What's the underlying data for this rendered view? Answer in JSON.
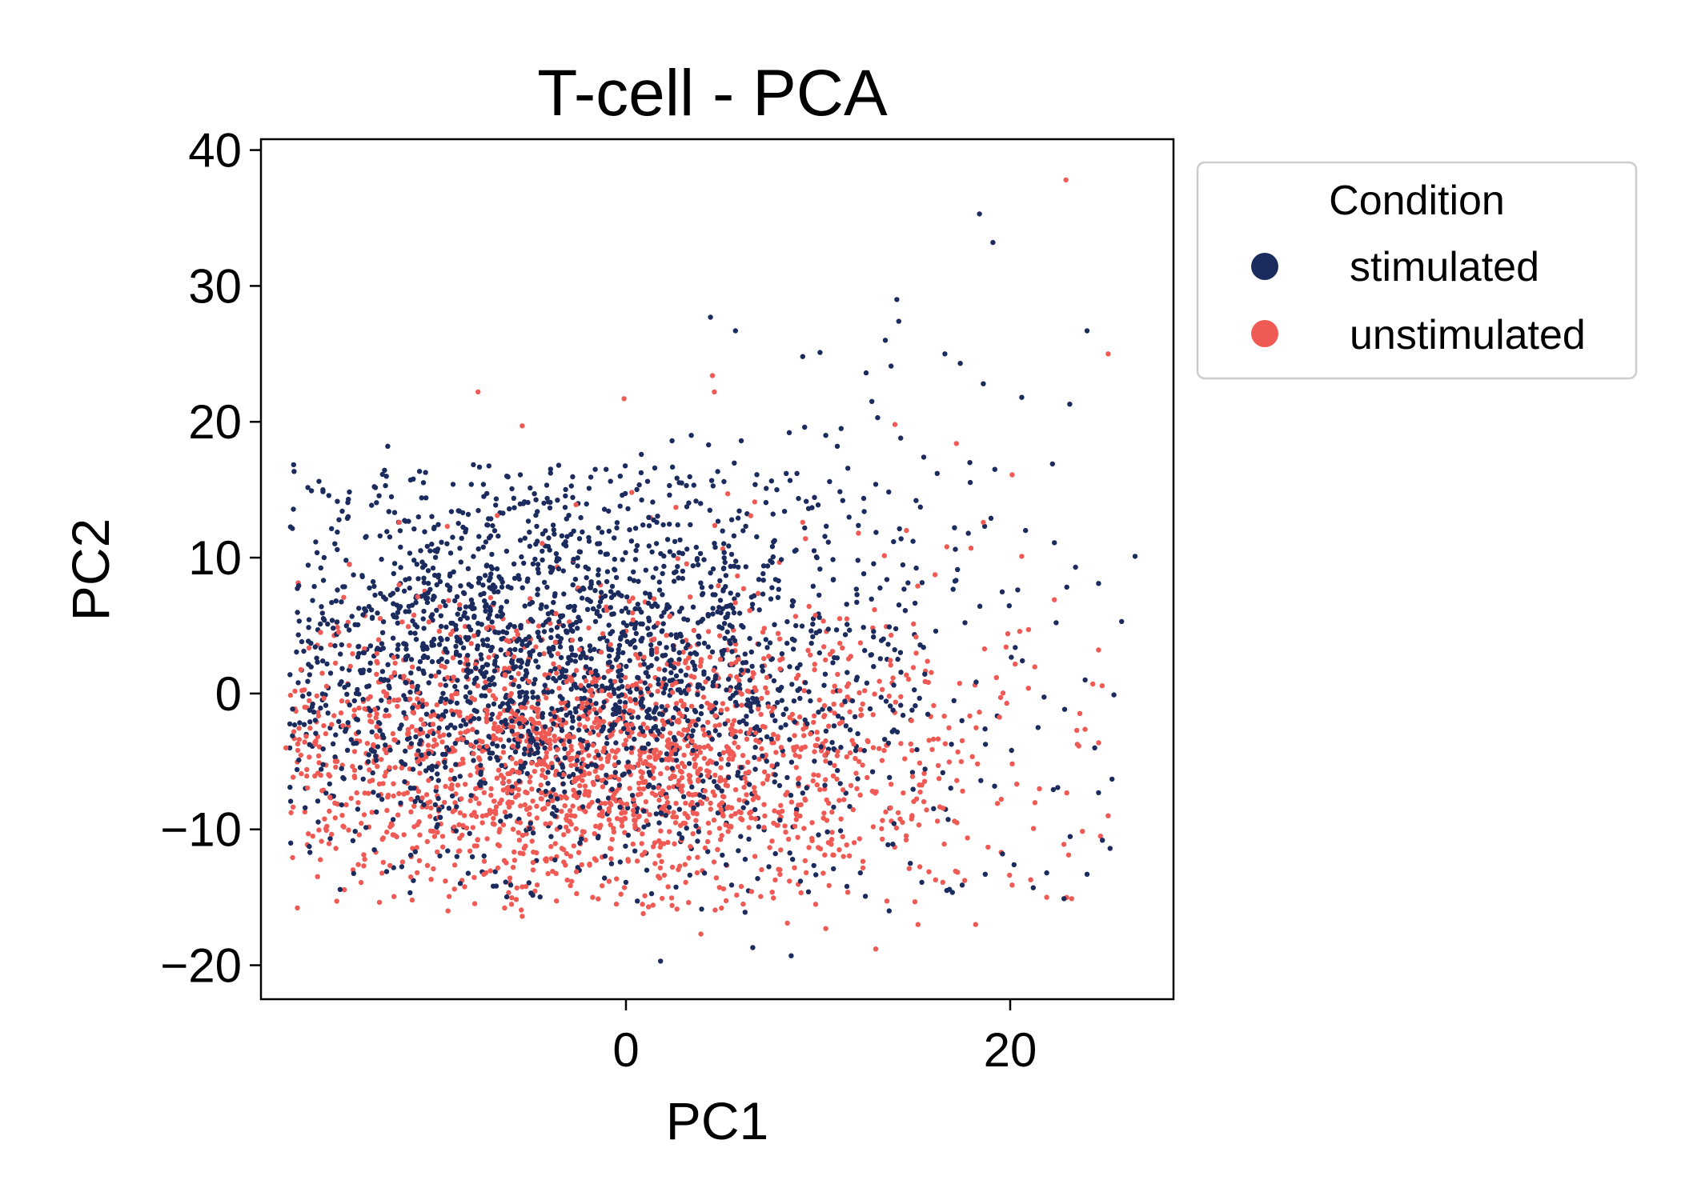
{
  "chart_data": {
    "type": "scatter",
    "title": "T-cell - PCA",
    "xlabel": "PC1",
    "ylabel": "PC2",
    "xlim": [
      -19,
      28.5
    ],
    "ylim": [
      -22.5,
      40.8
    ],
    "xticks": [
      0,
      20
    ],
    "yticks": [
      -20,
      -10,
      0,
      10,
      20,
      30,
      40
    ],
    "xtick_labels": [
      "0",
      "20"
    ],
    "ytick_labels": [
      "−20",
      "−10",
      "0",
      "10",
      "20",
      "30",
      "40"
    ],
    "grid": false,
    "legend": {
      "title": "Condition",
      "placement": "outside upper right",
      "entries": [
        "stimulated",
        "unstimulated"
      ]
    },
    "series": [
      {
        "name": "stimulated",
        "color": "#1b2b5e",
        "points": [
          [
            -12.4,
            18.2
          ],
          [
            -5.5,
            16.1
          ],
          [
            -6.2,
            16.0
          ],
          [
            -3.5,
            16.8
          ],
          [
            -1.6,
            16.5
          ],
          [
            0.8,
            17.6
          ],
          [
            2.4,
            18.6
          ],
          [
            3.4,
            19.0
          ],
          [
            4.3,
            18.3
          ],
          [
            6.0,
            18.6
          ],
          [
            4.4,
            27.7
          ],
          [
            5.7,
            26.7
          ],
          [
            9.2,
            24.8
          ],
          [
            10.1,
            25.1
          ],
          [
            13.8,
            24.1
          ],
          [
            14.1,
            29.0
          ],
          [
            14.2,
            27.4
          ],
          [
            13.5,
            26.0
          ],
          [
            16.6,
            25.0
          ],
          [
            17.4,
            24.3
          ],
          [
            18.4,
            35.3
          ],
          [
            19.1,
            33.2
          ],
          [
            12.5,
            23.6
          ],
          [
            13.1,
            20.3
          ],
          [
            11.2,
            19.5
          ],
          [
            10.4,
            19.0
          ],
          [
            8.5,
            19.2
          ],
          [
            9.3,
            19.6
          ],
          [
            18.6,
            22.8
          ],
          [
            20.6,
            21.8
          ],
          [
            23.1,
            21.3
          ],
          [
            24.0,
            26.7
          ],
          [
            12.8,
            21.5
          ],
          [
            14.3,
            18.8
          ],
          [
            11.0,
            18.2
          ],
          [
            22.2,
            16.9
          ],
          [
            19.2,
            16.5
          ],
          [
            15.5,
            17.4
          ],
          [
            16.2,
            16.2
          ],
          [
            17.9,
            17.0
          ],
          [
            26.5,
            10.1
          ],
          [
            25.8,
            5.3
          ],
          [
            25.4,
            -0.1
          ],
          [
            25.3,
            -6.3
          ],
          [
            25.2,
            -11.4
          ],
          [
            24.8,
            -10.8
          ],
          [
            24.6,
            -7.3
          ],
          [
            24.4,
            -4.0
          ],
          [
            24.0,
            -13.3
          ],
          [
            23.9,
            1.0
          ],
          [
            22.8,
            -15.1
          ],
          [
            21.9,
            -13.2
          ],
          [
            21.2,
            -14.3
          ],
          [
            20.2,
            -12.6
          ],
          [
            19.6,
            -11.8
          ],
          [
            18.7,
            -13.3
          ],
          [
            17.5,
            -14.1
          ],
          [
            16.7,
            -14.5
          ],
          [
            15.4,
            -13.9
          ],
          [
            14.8,
            -12.5
          ],
          [
            13.7,
            -16.0
          ],
          [
            12.2,
            -13.2
          ],
          [
            11.5,
            -14.2
          ],
          [
            10.8,
            -12.9
          ],
          [
            9.5,
            -14.6
          ],
          [
            8.6,
            -19.3
          ],
          [
            6.6,
            -18.7
          ],
          [
            6.2,
            -16.1
          ],
          [
            5.5,
            -14.1
          ],
          [
            1.8,
            -19.7
          ],
          [
            -0.3,
            -12.4
          ],
          [
            -2.4,
            -11.0
          ],
          [
            -6.0,
            -14.1
          ],
          [
            -8.8,
            -12.0
          ],
          [
            -11.2,
            -11.9
          ],
          [
            -13.1,
            -11.5
          ],
          [
            -14.8,
            -8.2
          ],
          [
            -16.1,
            2.6
          ],
          [
            -16.4,
            3.7
          ],
          [
            -15.7,
            5.4
          ],
          [
            -14.5,
            12.9
          ],
          [
            -12.8,
            11.6
          ],
          [
            -10.8,
            13.0
          ],
          [
            -9.0,
            15.4
          ],
          [
            -7.4,
            14.5
          ],
          [
            -0.3,
            16.0
          ],
          [
            1.5,
            16.6
          ],
          [
            2.9,
            15.5
          ],
          [
            5.1,
            15.6
          ],
          [
            7.3,
            15.1
          ],
          [
            8.9,
            16.2
          ],
          [
            10.6,
            15.6
          ],
          [
            13.0,
            15.4
          ],
          [
            15.1,
            14.2
          ],
          [
            17.1,
            12.2
          ],
          [
            19.0,
            12.9
          ],
          [
            20.8,
            12.0
          ],
          [
            22.3,
            11.1
          ],
          [
            23.4,
            9.3
          ],
          [
            24.6,
            8.1
          ]
        ],
        "cluster_generator": {
          "count": 2300,
          "center": [
            -3.5,
            2.5
          ],
          "spread": [
            9.5,
            7.5
          ]
        }
      },
      {
        "name": "unstimulated",
        "color": "#f05a55",
        "points": [
          [
            22.9,
            37.8
          ],
          [
            25.1,
            25.0
          ],
          [
            -7.7,
            22.2
          ],
          [
            -0.1,
            21.7
          ],
          [
            -5.4,
            19.7
          ],
          [
            4.5,
            23.4
          ],
          [
            4.6,
            22.2
          ],
          [
            17.2,
            18.4
          ],
          [
            20.1,
            16.1
          ],
          [
            14.0,
            19.8
          ],
          [
            -17.7,
            -4.0
          ],
          [
            -16.9,
            -5.9
          ],
          [
            -16.3,
            -10.5
          ],
          [
            -15.1,
            -11.4
          ],
          [
            -13.6,
            -12.2
          ],
          [
            -11.2,
            -13.5
          ],
          [
            -9.4,
            -13.8
          ],
          [
            -7.4,
            -13.3
          ],
          [
            -5.4,
            -16.4
          ],
          [
            -2.3,
            -12.6
          ],
          [
            -0.5,
            -15.5
          ],
          [
            0.9,
            -16.2
          ],
          [
            2.4,
            -15.6
          ],
          [
            3.9,
            -17.7
          ],
          [
            6.1,
            -15.5
          ],
          [
            8.4,
            -16.9
          ],
          [
            10.4,
            -17.3
          ],
          [
            13.0,
            -18.8
          ],
          [
            15.2,
            -17.0
          ],
          [
            18.2,
            -17.0
          ],
          [
            20.1,
            -14.1
          ],
          [
            21.9,
            -15.0
          ],
          [
            23.2,
            -15.1
          ],
          [
            24.7,
            -10.5
          ],
          [
            25.1,
            -9.0
          ],
          [
            24.3,
            0.7
          ],
          [
            24.6,
            3.2
          ],
          [
            22.3,
            6.9
          ],
          [
            20.6,
            10.1
          ],
          [
            18.6,
            12.6
          ],
          [
            16.7,
            10.8
          ],
          [
            14.6,
            12.0
          ],
          [
            12.1,
            11.8
          ],
          [
            9.2,
            12.6
          ],
          [
            6.7,
            14.1
          ],
          [
            5.3,
            14.7
          ],
          [
            2.6,
            13.7
          ],
          [
            0.3,
            14.8
          ],
          [
            -2.6,
            13.9
          ],
          [
            -6.7,
            13.1
          ],
          [
            -9.3,
            12.3
          ],
          [
            -11.8,
            12.6
          ],
          [
            -14.4,
            9.5
          ],
          [
            -15.9,
            4.5
          ]
        ],
        "cluster_generator": {
          "count": 2000,
          "center": [
            -2.0,
            -5.0
          ],
          "spread": [
            10.0,
            5.5
          ]
        }
      }
    ]
  }
}
